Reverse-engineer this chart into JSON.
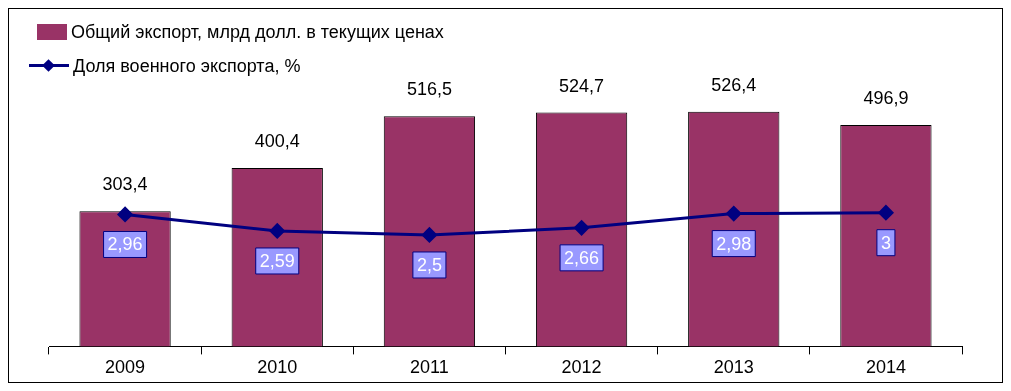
{
  "chart_data": {
    "type": "bar",
    "categories": [
      "2009",
      "2010",
      "2011",
      "2012",
      "2013",
      "2014"
    ],
    "series": [
      {
        "name": "Общий экспорт, млрд долл. в текущих ценах",
        "color": "#993366",
        "values": [
          303.4,
          400.4,
          516.5,
          524.7,
          526.4,
          496.9
        ],
        "value_labels": [
          "303,4",
          "400,4",
          "516,5",
          "524,7",
          "526,4",
          "496,9"
        ]
      },
      {
        "name": "Доля военного экспорта, %",
        "type": "line",
        "axis": "y2",
        "color": "#000080",
        "values": [
          2.96,
          2.59,
          2.5,
          2.66,
          2.98,
          3
        ],
        "value_labels": [
          "2,96",
          "2,59",
          "2,5",
          "2,66",
          "2,98",
          "3"
        ]
      }
    ],
    "tick_labels": "x",
    "legend": "top left",
    "marker": "diamond"
  }
}
